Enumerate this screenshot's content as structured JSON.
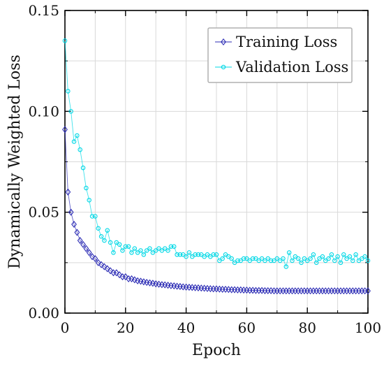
{
  "chart_data": {
    "type": "line",
    "title": "",
    "xlabel": "Epoch",
    "ylabel": "Dynamically Weighted Loss",
    "xlim": [
      0,
      100
    ],
    "ylim": [
      0,
      0.15
    ],
    "x_ticks": [
      0,
      20,
      40,
      60,
      80,
      100
    ],
    "x_tick_labels": [
      "0",
      "20",
      "40",
      "60",
      "80",
      "100"
    ],
    "y_ticks": [
      0,
      0.05,
      0.1,
      0.15
    ],
    "y_tick_labels": [
      "0.00",
      "0.05",
      "0.10",
      "0.15"
    ],
    "grid": true,
    "legend_position": "top-right",
    "series": [
      {
        "name": "Training Loss",
        "color": "#2d2db5",
        "marker": "diamond",
        "x": [
          0,
          1,
          2,
          3,
          4,
          5,
          6,
          7,
          8,
          9,
          10,
          11,
          12,
          13,
          14,
          15,
          16,
          17,
          18,
          19,
          20,
          21,
          22,
          23,
          24,
          25,
          26,
          27,
          28,
          29,
          30,
          31,
          32,
          33,
          34,
          35,
          36,
          37,
          38,
          39,
          40,
          41,
          42,
          43,
          44,
          45,
          46,
          47,
          48,
          49,
          50,
          51,
          52,
          53,
          54,
          55,
          56,
          57,
          58,
          59,
          60,
          61,
          62,
          63,
          64,
          65,
          66,
          67,
          68,
          69,
          70,
          71,
          72,
          73,
          74,
          75,
          76,
          77,
          78,
          79,
          80,
          81,
          82,
          83,
          84,
          85,
          86,
          87,
          88,
          89,
          90,
          91,
          92,
          93,
          94,
          95,
          96,
          97,
          98,
          99,
          100
        ],
        "y": [
          0.091,
          0.06,
          0.05,
          0.044,
          0.04,
          0.036,
          0.034,
          0.032,
          0.03,
          0.028,
          0.027,
          0.025,
          0.024,
          0.023,
          0.022,
          0.021,
          0.02,
          0.02,
          0.019,
          0.018,
          0.018,
          0.017,
          0.017,
          0.0165,
          0.016,
          0.0158,
          0.0155,
          0.0152,
          0.015,
          0.0148,
          0.0145,
          0.0143,
          0.0141,
          0.014,
          0.0138,
          0.0136,
          0.0135,
          0.0133,
          0.0132,
          0.013,
          0.0129,
          0.0128,
          0.0127,
          0.0126,
          0.0125,
          0.0124,
          0.0123,
          0.0122,
          0.0121,
          0.012,
          0.012,
          0.0119,
          0.0118,
          0.0118,
          0.0117,
          0.0116,
          0.0116,
          0.0115,
          0.0115,
          0.0114,
          0.0114,
          0.0113,
          0.0113,
          0.0112,
          0.0112,
          0.0112,
          0.0111,
          0.0111,
          0.0111,
          0.011,
          0.011,
          0.011,
          0.011,
          0.011,
          0.011,
          0.011,
          0.011,
          0.011,
          0.011,
          0.011,
          0.011,
          0.011,
          0.011,
          0.011,
          0.011,
          0.011,
          0.011,
          0.011,
          0.011,
          0.011,
          0.011,
          0.011,
          0.011,
          0.011,
          0.011,
          0.011,
          0.011,
          0.011,
          0.011,
          0.011,
          0.011
        ]
      },
      {
        "name": "Validation Loss",
        "color": "#00d8e6",
        "marker": "circle",
        "x": [
          0,
          1,
          2,
          3,
          4,
          5,
          6,
          7,
          8,
          9,
          10,
          11,
          12,
          13,
          14,
          15,
          16,
          17,
          18,
          19,
          20,
          21,
          22,
          23,
          24,
          25,
          26,
          27,
          28,
          29,
          30,
          31,
          32,
          33,
          34,
          35,
          36,
          37,
          38,
          39,
          40,
          41,
          42,
          43,
          44,
          45,
          46,
          47,
          48,
          49,
          50,
          51,
          52,
          53,
          54,
          55,
          56,
          57,
          58,
          59,
          60,
          61,
          62,
          63,
          64,
          65,
          66,
          67,
          68,
          69,
          70,
          71,
          72,
          73,
          74,
          75,
          76,
          77,
          78,
          79,
          80,
          81,
          82,
          83,
          84,
          85,
          86,
          87,
          88,
          89,
          90,
          91,
          92,
          93,
          94,
          95,
          96,
          97,
          98,
          99,
          100
        ],
        "y": [
          0.135,
          0.11,
          0.1,
          0.085,
          0.088,
          0.081,
          0.072,
          0.062,
          0.056,
          0.048,
          0.048,
          0.042,
          0.038,
          0.036,
          0.041,
          0.035,
          0.03,
          0.035,
          0.034,
          0.031,
          0.033,
          0.033,
          0.03,
          0.032,
          0.03,
          0.031,
          0.029,
          0.031,
          0.032,
          0.03,
          0.031,
          0.032,
          0.031,
          0.032,
          0.031,
          0.033,
          0.033,
          0.029,
          0.029,
          0.029,
          0.028,
          0.03,
          0.028,
          0.029,
          0.029,
          0.029,
          0.028,
          0.029,
          0.028,
          0.029,
          0.029,
          0.026,
          0.027,
          0.029,
          0.028,
          0.027,
          0.025,
          0.026,
          0.026,
          0.027,
          0.027,
          0.026,
          0.027,
          0.027,
          0.026,
          0.027,
          0.026,
          0.027,
          0.026,
          0.026,
          0.027,
          0.026,
          0.027,
          0.023,
          0.03,
          0.026,
          0.028,
          0.027,
          0.025,
          0.027,
          0.026,
          0.027,
          0.029,
          0.025,
          0.027,
          0.028,
          0.026,
          0.027,
          0.029,
          0.026,
          0.028,
          0.025,
          0.029,
          0.027,
          0.028,
          0.026,
          0.029,
          0.026,
          0.027,
          0.028,
          0.026
        ]
      }
    ]
  }
}
